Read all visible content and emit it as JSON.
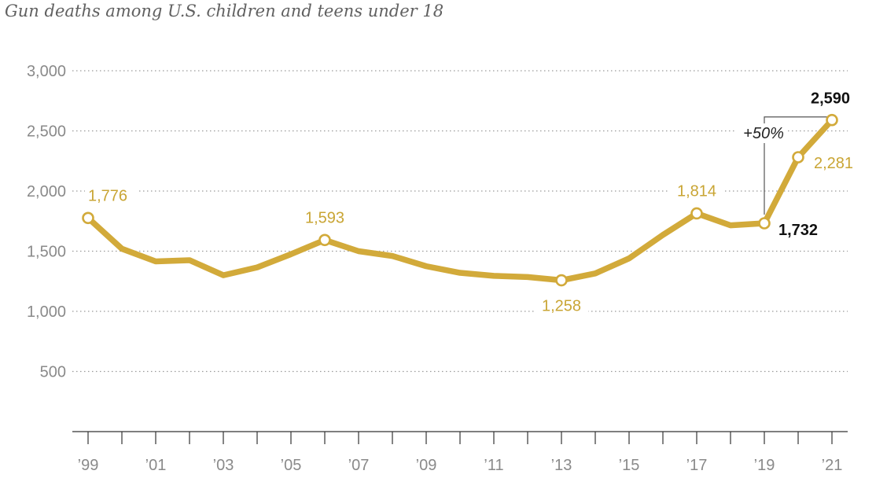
{
  "chart_data": {
    "type": "line",
    "title": "Gun deaths among U.S. children and teens under 18",
    "xlabel": "",
    "ylabel": "",
    "ylim": [
      0,
      3000
    ],
    "yticks": [
      500,
      1000,
      1500,
      2000,
      2500,
      3000
    ],
    "ytick_labels": [
      "500",
      "1,000",
      "1,500",
      "2,000",
      "2,500",
      "3,000"
    ],
    "x_tick_labels": [
      {
        "year": 1999,
        "label": "’99"
      },
      {
        "year": 2001,
        "label": "’01"
      },
      {
        "year": 2003,
        "label": "’03"
      },
      {
        "year": 2005,
        "label": "’05"
      },
      {
        "year": 2007,
        "label": "’07"
      },
      {
        "year": 2009,
        "label": "’09"
      },
      {
        "year": 2011,
        "label": "’11"
      },
      {
        "year": 2013,
        "label": "’13"
      },
      {
        "year": 2015,
        "label": "’15"
      },
      {
        "year": 2017,
        "label": "’17"
      },
      {
        "year": 2019,
        "label": "’19"
      },
      {
        "year": 2021,
        "label": "’21"
      }
    ],
    "x": [
      1999,
      2000,
      2001,
      2002,
      2003,
      2004,
      2005,
      2006,
      2007,
      2008,
      2009,
      2010,
      2011,
      2012,
      2013,
      2014,
      2015,
      2016,
      2017,
      2018,
      2019,
      2020,
      2021
    ],
    "series": [
      {
        "name": "Gun deaths",
        "values": [
          1776,
          1520,
          1415,
          1425,
          1300,
          1365,
          1475,
          1593,
          1500,
          1460,
          1375,
          1320,
          1295,
          1285,
          1258,
          1315,
          1440,
          1635,
          1814,
          1715,
          1732,
          2281,
          2590
        ]
      }
    ],
    "highlighted_points": [
      1999,
      2006,
      2013,
      2017,
      2019,
      2020,
      2021
    ],
    "data_labels": [
      {
        "year": 1999,
        "text": "1,776",
        "emphasis": false
      },
      {
        "year": 2006,
        "text": "1,593",
        "emphasis": false
      },
      {
        "year": 2013,
        "text": "1,258",
        "emphasis": false
      },
      {
        "year": 2017,
        "text": "1,814",
        "emphasis": false
      },
      {
        "year": 2019,
        "text": "1,732",
        "emphasis": true
      },
      {
        "year": 2020,
        "text": "2,281",
        "emphasis": false
      },
      {
        "year": 2021,
        "text": "2,590",
        "emphasis": true
      }
    ],
    "annotation": {
      "text": "+50%",
      "from_year": 2019,
      "to_year": 2021
    },
    "grid": true,
    "colors": {
      "line": "#d2aa3a",
      "label": "#c9a534",
      "emphasis": "#111111",
      "grid": "#9a9a9a",
      "tick": "#8a8a8a",
      "axis": "#333333"
    }
  }
}
